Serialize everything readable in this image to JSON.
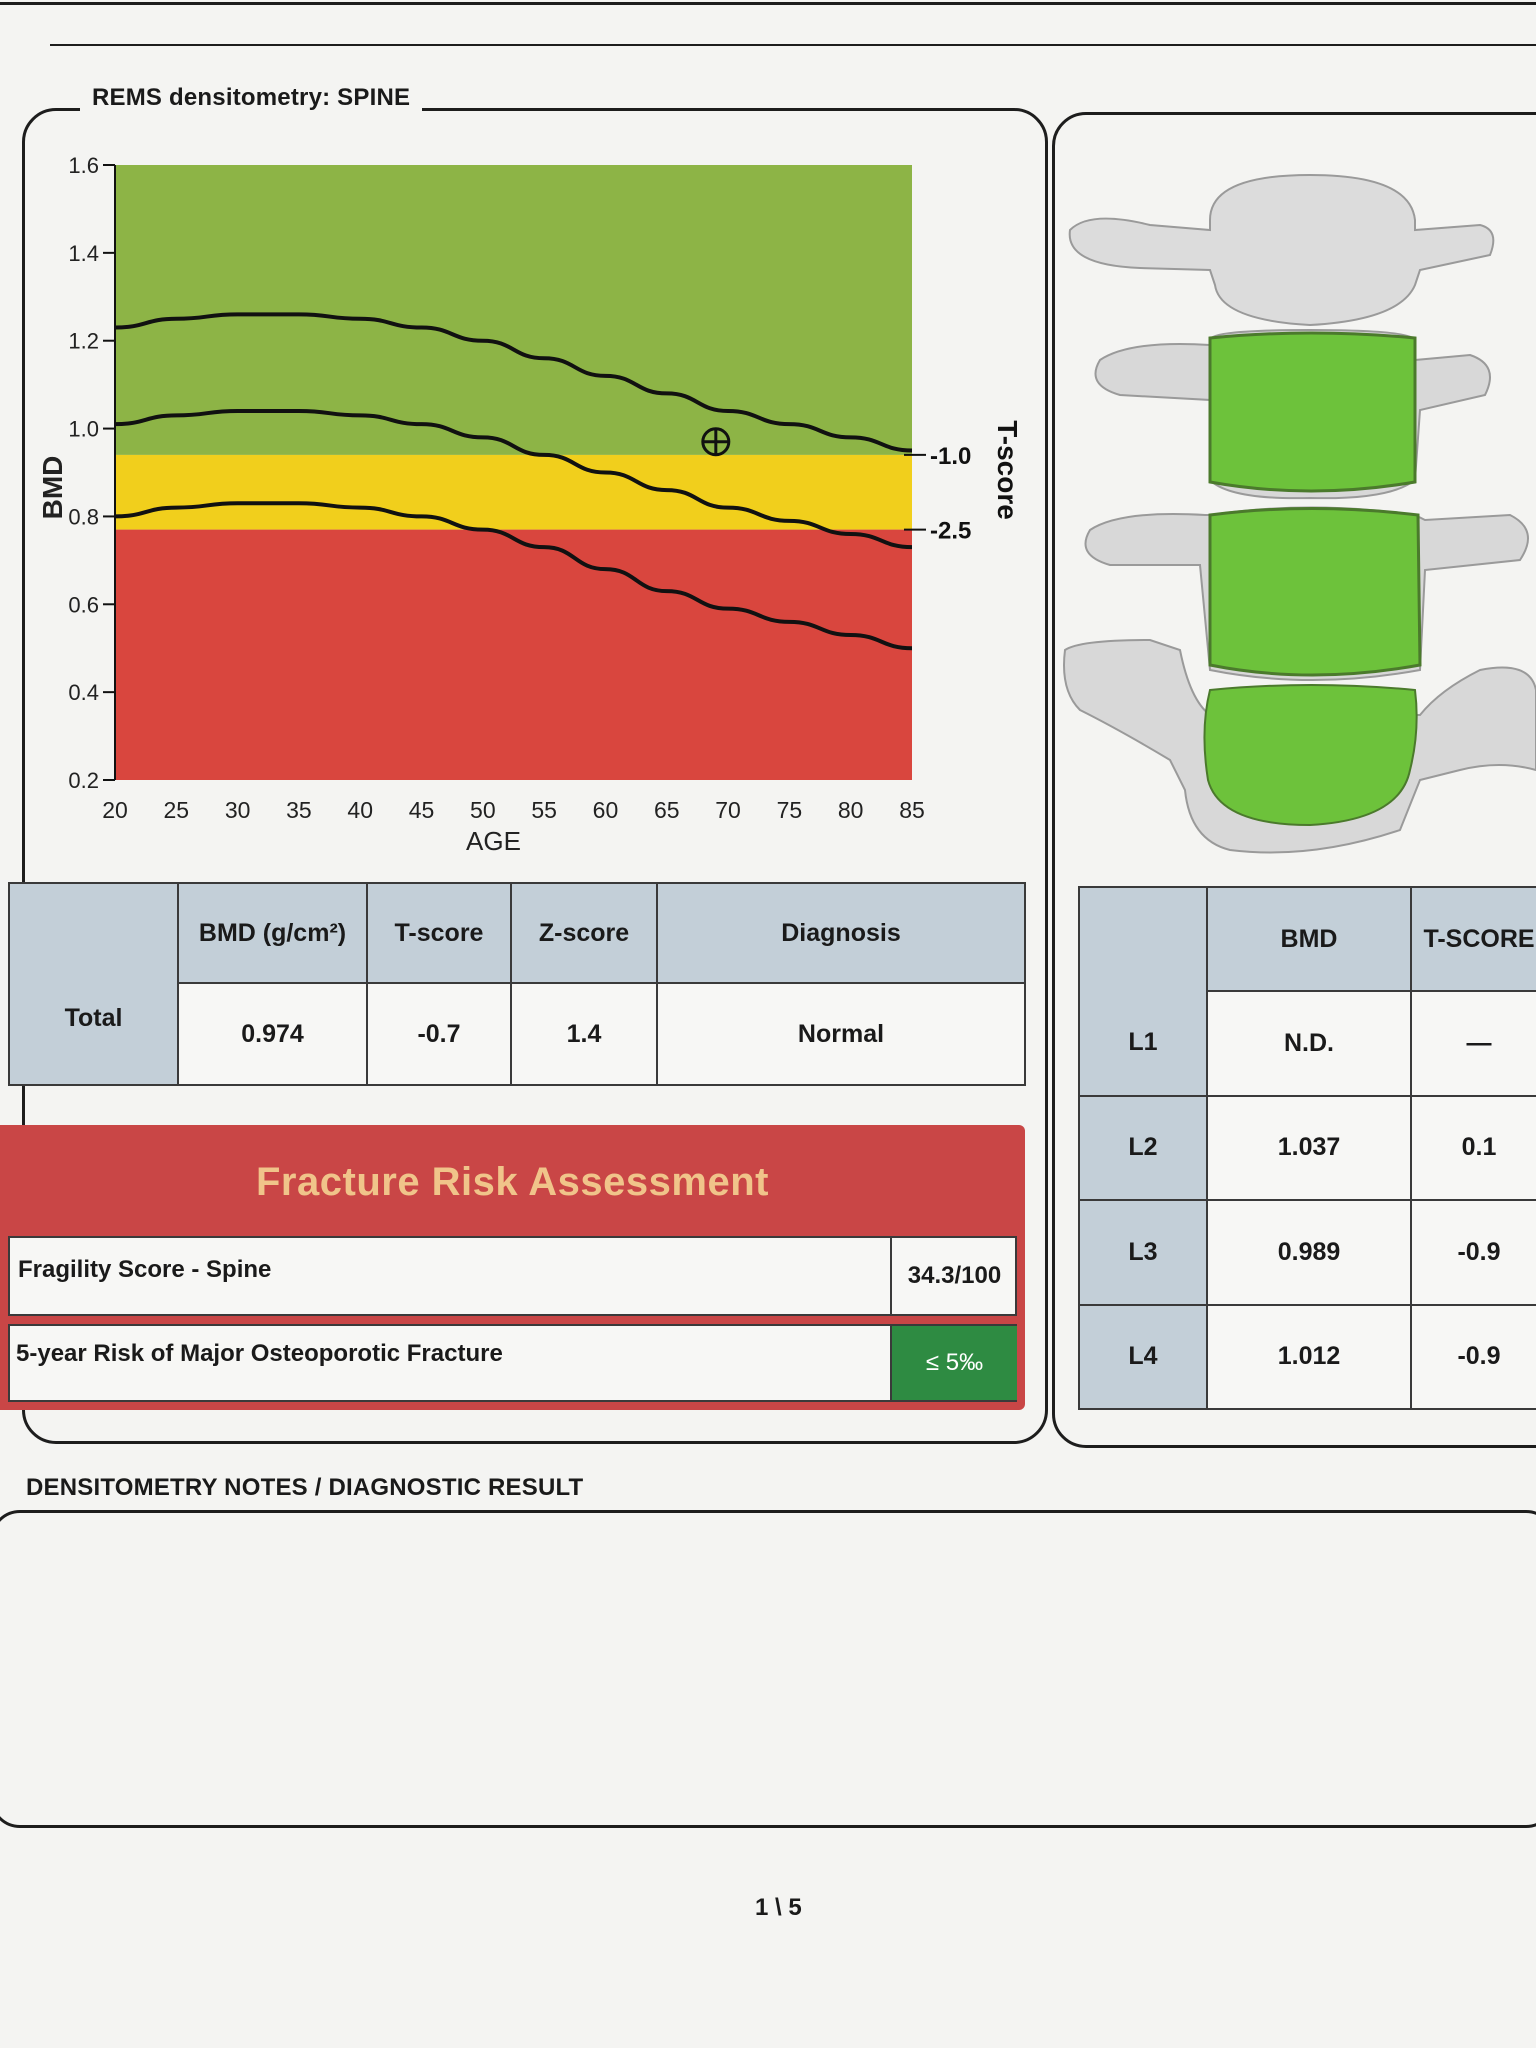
{
  "section_title": "REMS densitometry: SPINE",
  "chart_data": {
    "type": "line",
    "xlabel": "AGE",
    "ylabel": "BMD",
    "right_label": "T-score",
    "xlim": [
      20,
      85
    ],
    "ylim": [
      0.2,
      1.6
    ],
    "x_ticks": [
      "20",
      "25",
      "30",
      "35",
      "40",
      "45",
      "50",
      "55",
      "60",
      "65",
      "70",
      "75",
      "80",
      "85"
    ],
    "y_ticks": [
      "0.2",
      "0.4",
      "0.6",
      "0.8",
      "1.0",
      "1.2",
      "1.4",
      "1.6"
    ],
    "t_score_ticks": [
      {
        "label": "-1.0",
        "bmd": 0.94
      },
      {
        "label": "-2.5",
        "bmd": 0.77
      }
    ],
    "zones": [
      {
        "name": "normal",
        "from": 0.94,
        "to": 1.6,
        "color": "#8db446"
      },
      {
        "name": "osteopenia",
        "from": 0.77,
        "to": 0.94,
        "color": "#f1cf1c"
      },
      {
        "name": "osteoporosis",
        "from": 0.2,
        "to": 0.77,
        "color": "#d9463e"
      }
    ],
    "series": [
      {
        "x": [
          20,
          25,
          30,
          35,
          40,
          45,
          50,
          55,
          60,
          65,
          70,
          75,
          80,
          85
        ],
        "values": [
          1.23,
          1.25,
          1.26,
          1.26,
          1.25,
          1.23,
          1.2,
          1.16,
          1.12,
          1.08,
          1.04,
          1.01,
          0.98,
          0.95
        ]
      },
      {
        "x": [
          20,
          25,
          30,
          35,
          40,
          45,
          50,
          55,
          60,
          65,
          70,
          75,
          80,
          85
        ],
        "values": [
          1.01,
          1.03,
          1.04,
          1.04,
          1.03,
          1.01,
          0.98,
          0.94,
          0.9,
          0.86,
          0.82,
          0.79,
          0.76,
          0.73
        ]
      },
      {
        "x": [
          20,
          25,
          30,
          35,
          40,
          45,
          50,
          55,
          60,
          65,
          70,
          75,
          80,
          85
        ],
        "values": [
          0.8,
          0.82,
          0.83,
          0.83,
          0.82,
          0.8,
          0.77,
          0.73,
          0.68,
          0.63,
          0.59,
          0.56,
          0.53,
          0.5
        ]
      }
    ],
    "patient_point": {
      "x": 69,
      "y": 0.97
    }
  },
  "summary_table": {
    "headers": [
      "",
      "BMD (g/cm²)",
      "T-score",
      "Z-score",
      "Diagnosis"
    ],
    "row": {
      "label": "Total",
      "bmd": "0.974",
      "t_score": "-0.7",
      "z_score": "1.4",
      "diagnosis": "Normal"
    }
  },
  "fracture": {
    "title": "Fracture Risk Assessment",
    "fragility_label": "Fragility Score - Spine",
    "fragility_value": "34.3/100",
    "risk_label": "5-year Risk of Major Osteoporotic Fracture",
    "risk_value": "≤ 5‰",
    "risk_color": "#2e8b42"
  },
  "vertebra_table": {
    "headers": [
      "",
      "BMD",
      "T-SCORE"
    ],
    "rows": [
      {
        "label": "L1",
        "bmd": "N.D.",
        "t": "—"
      },
      {
        "label": "L2",
        "bmd": "1.037",
        "t": "0.1"
      },
      {
        "label": "L3",
        "bmd": "0.989",
        "t": "-0.9"
      },
      {
        "label": "L4",
        "bmd": "1.012",
        "t": "-0.9"
      }
    ]
  },
  "notes_title": "DENSITOMETRY NOTES / DIAGNOSTIC RESULT",
  "page_number": "1 \\ 5"
}
